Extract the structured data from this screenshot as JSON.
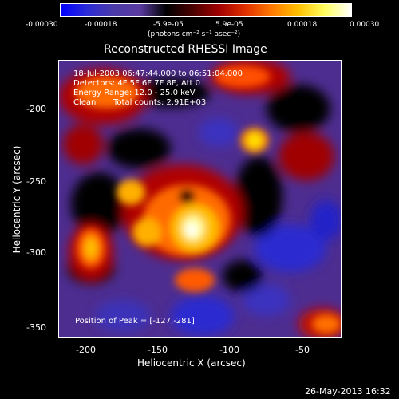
{
  "colorbar": {
    "tick_labels": [
      "-0.00030",
      "-0.00018",
      "-5.9e-05",
      "5.9e-05",
      "0.00018",
      "0.00030"
    ],
    "unit_label": "(photons cm⁻² s⁻¹ asec⁻²)",
    "colormap": [
      "#0000ff",
      "#2b2bd6",
      "#4b3aa8",
      "#5a3ba0",
      "#000000",
      "#4a0000",
      "#a00000",
      "#e03000",
      "#ff7a00",
      "#ffc000",
      "#ffff60",
      "#ffffff"
    ]
  },
  "title": "Reconstructed RHESSI Image",
  "info": {
    "time_range": "18-Jul-2003 06:47:44.000 to 06:51:04.000",
    "detectors": "Detectors: 4F 5F 6F 7F 8F, Att 0",
    "energy_range": "Energy Range: 12.0 - 25.0 keV",
    "clean_label": "Clean",
    "total_counts": "Total counts: 2.91E+03"
  },
  "peak_position": "Position of Peak = [-127,-281]",
  "axes": {
    "x_label": "Heliocentric X (arcsec)",
    "y_label": "Heliocentric Y (arcsec)",
    "x_ticks": [
      "-200",
      "-150",
      "-100",
      "-50"
    ],
    "y_ticks": [
      "-200",
      "-250",
      "-300",
      "-350"
    ]
  },
  "footer_date": "26-May-2013 16:32"
}
